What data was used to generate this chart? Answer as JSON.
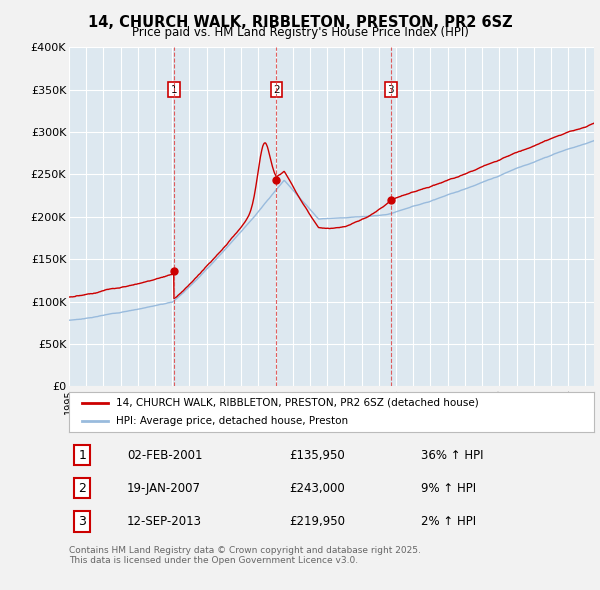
{
  "title": "14, CHURCH WALK, RIBBLETON, PRESTON, PR2 6SZ",
  "subtitle": "Price paid vs. HM Land Registry's House Price Index (HPI)",
  "ylim": [
    0,
    400000
  ],
  "yticks": [
    0,
    50000,
    100000,
    150000,
    200000,
    250000,
    300000,
    350000,
    400000
  ],
  "ytick_labels": [
    "£0",
    "£50K",
    "£100K",
    "£150K",
    "£200K",
    "£250K",
    "£300K",
    "£350K",
    "£400K"
  ],
  "xlim_start": 1995.0,
  "xlim_end": 2025.5,
  "sale_dates": [
    2001.085,
    2007.054,
    2013.703
  ],
  "sale_prices": [
    135950,
    243000,
    219950
  ],
  "sale_labels": [
    "1",
    "2",
    "3"
  ],
  "sale_date_strs": [
    "02-FEB-2001",
    "19-JAN-2007",
    "12-SEP-2013"
  ],
  "sale_price_strs": [
    "£135,950",
    "£243,000",
    "£219,950"
  ],
  "sale_hpi_strs": [
    "36% ↑ HPI",
    "9% ↑ HPI",
    "2% ↑ HPI"
  ],
  "red_color": "#cc0000",
  "blue_color": "#99bbdd",
  "fig_bg_color": "#f2f2f2",
  "plot_bg_color": "#dde8f0",
  "grid_color": "#ffffff",
  "legend_label_red": "14, CHURCH WALK, RIBBLETON, PRESTON, PR2 6SZ (detached house)",
  "legend_label_blue": "HPI: Average price, detached house, Preston",
  "footer": "Contains HM Land Registry data © Crown copyright and database right 2025.\nThis data is licensed under the Open Government Licence v3.0."
}
